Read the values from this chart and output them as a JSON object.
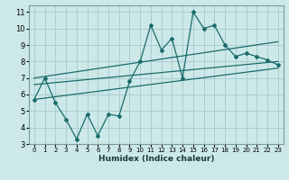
{
  "xlabel": "Humidex (Indice chaleur)",
  "ylabel": "",
  "bg_color": "#cce8e8",
  "grid_color": "#aacece",
  "line_color": "#1a6b6b",
  "xlim": [
    -0.5,
    23.5
  ],
  "ylim": [
    3,
    11.4
  ],
  "xticks": [
    0,
    1,
    2,
    3,
    4,
    5,
    6,
    7,
    8,
    9,
    10,
    11,
    12,
    13,
    14,
    15,
    16,
    17,
    18,
    19,
    20,
    21,
    22,
    23
  ],
  "yticks": [
    3,
    4,
    5,
    6,
    7,
    8,
    9,
    10,
    11
  ],
  "main_x": [
    0,
    1,
    2,
    3,
    4,
    5,
    6,
    7,
    8,
    9,
    10,
    11,
    12,
    13,
    14,
    15,
    16,
    17,
    18,
    19,
    20,
    21,
    22,
    23
  ],
  "main_y": [
    5.7,
    7.0,
    5.5,
    4.5,
    3.3,
    4.8,
    3.5,
    4.8,
    4.7,
    6.8,
    8.0,
    10.2,
    8.7,
    9.4,
    7.0,
    11.0,
    10.0,
    10.2,
    9.0,
    8.3,
    8.5,
    8.3,
    8.1,
    7.8
  ],
  "trend1_x": [
    0,
    23
  ],
  "trend1_y": [
    5.7,
    7.6
  ],
  "trend2_x": [
    0,
    23
  ],
  "trend2_y": [
    6.6,
    8.0
  ],
  "trend3_x": [
    0,
    23
  ],
  "trend3_y": [
    7.0,
    9.2
  ]
}
